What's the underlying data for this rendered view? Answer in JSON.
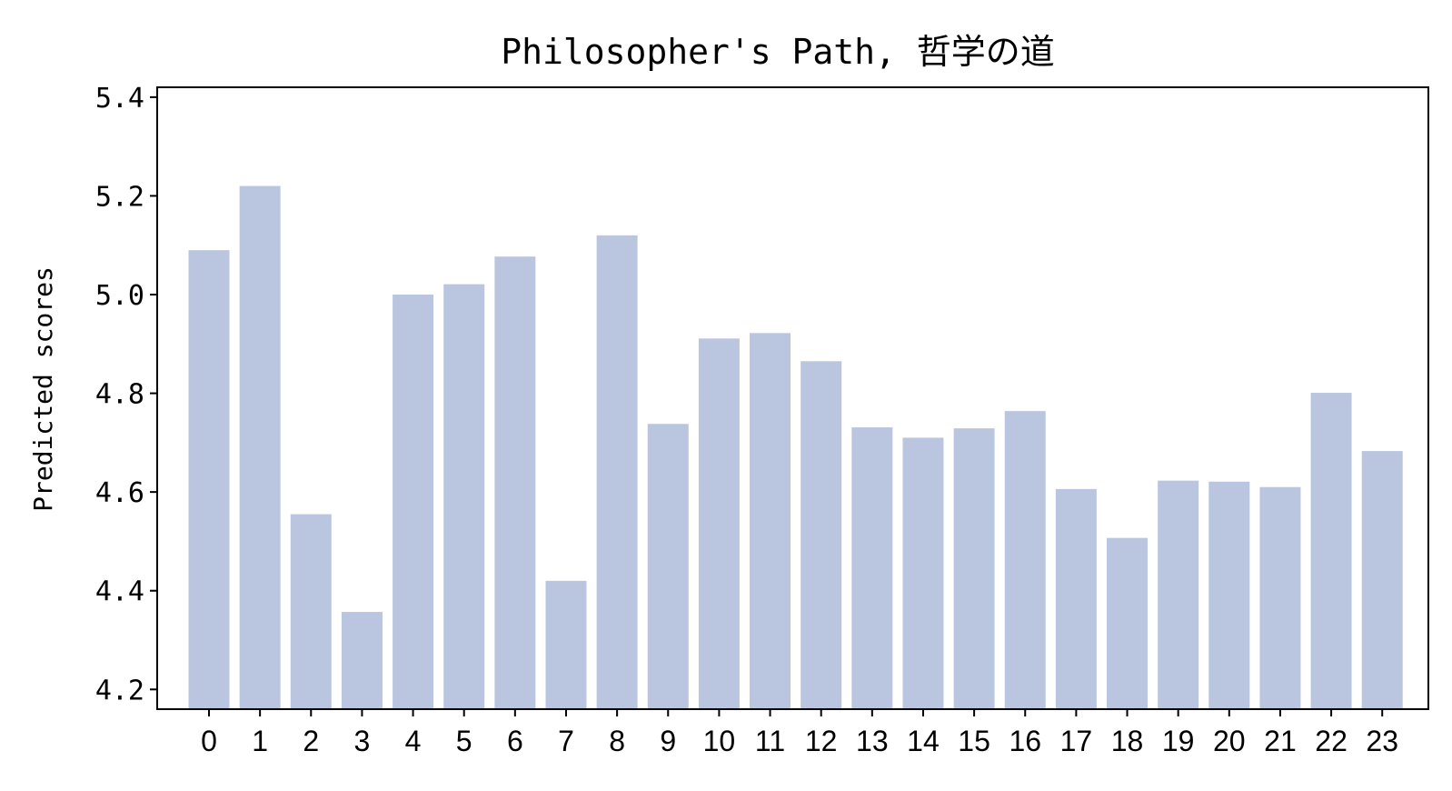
{
  "chart_data": {
    "type": "bar",
    "title": "Philosopher's Path, 哲学の道",
    "xlabel": "",
    "ylabel": "Predicted scores",
    "categories": [
      "0",
      "1",
      "2",
      "3",
      "4",
      "5",
      "6",
      "7",
      "8",
      "9",
      "10",
      "11",
      "12",
      "13",
      "14",
      "15",
      "16",
      "17",
      "18",
      "19",
      "20",
      "21",
      "22",
      "23"
    ],
    "values": [
      5.09,
      5.22,
      4.555,
      4.357,
      5.0,
      5.021,
      5.077,
      4.42,
      5.12,
      4.738,
      4.911,
      4.922,
      4.865,
      4.731,
      4.71,
      4.729,
      4.764,
      4.606,
      4.507,
      4.623,
      4.621,
      4.61,
      4.801,
      4.683
    ],
    "ylim": [
      4.16,
      5.42
    ],
    "yticks": [
      "4.2",
      "4.4",
      "4.6",
      "4.8",
      "5.0",
      "5.2",
      "5.4"
    ],
    "bar_color": "#bac6e0",
    "grid": false,
    "legend": "none"
  }
}
